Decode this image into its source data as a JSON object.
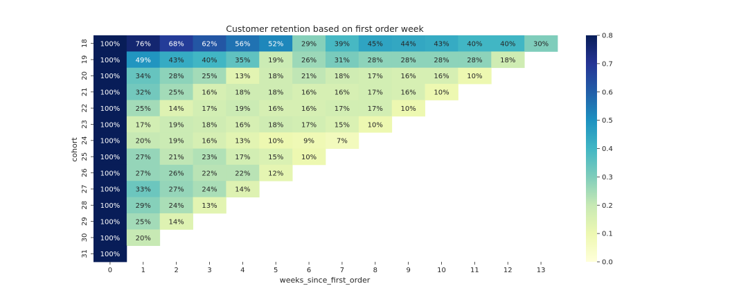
{
  "chart_data": {
    "type": "heatmap",
    "title": "Customer retention based on first order week",
    "xlabel": "weeks_since_first_order",
    "ylabel": "cohort",
    "x_categories": [
      "0",
      "1",
      "2",
      "3",
      "4",
      "5",
      "6",
      "7",
      "8",
      "9",
      "10",
      "11",
      "12",
      "13"
    ],
    "y_categories": [
      "18",
      "19",
      "20",
      "21",
      "22",
      "23",
      "24",
      "25",
      "26",
      "27",
      "28",
      "29",
      "30",
      "31"
    ],
    "values": [
      [
        1.0,
        0.76,
        0.68,
        0.62,
        0.56,
        0.52,
        0.29,
        0.39,
        0.45,
        0.44,
        0.43,
        0.4,
        0.4,
        0.3
      ],
      [
        1.0,
        0.49,
        0.43,
        0.4,
        0.35,
        0.19,
        0.26,
        0.31,
        0.28,
        0.28,
        0.28,
        0.28,
        0.18
      ],
      [
        1.0,
        0.34,
        0.28,
        0.25,
        0.13,
        0.18,
        0.21,
        0.18,
        0.17,
        0.16,
        0.16,
        0.1
      ],
      [
        1.0,
        0.32,
        0.25,
        0.16,
        0.18,
        0.18,
        0.16,
        0.16,
        0.17,
        0.16,
        0.1
      ],
      [
        1.0,
        0.25,
        0.14,
        0.17,
        0.19,
        0.16,
        0.16,
        0.17,
        0.17,
        0.1
      ],
      [
        1.0,
        0.17,
        0.19,
        0.18,
        0.16,
        0.18,
        0.17,
        0.15,
        0.1
      ],
      [
        1.0,
        0.2,
        0.19,
        0.16,
        0.13,
        0.1,
        0.09,
        0.07
      ],
      [
        1.0,
        0.27,
        0.21,
        0.23,
        0.17,
        0.15,
        0.1
      ],
      [
        1.0,
        0.27,
        0.26,
        0.22,
        0.22,
        0.12
      ],
      [
        1.0,
        0.33,
        0.27,
        0.24,
        0.14
      ],
      [
        1.0,
        0.29,
        0.24,
        0.13
      ],
      [
        1.0,
        0.25,
        0.14
      ],
      [
        1.0,
        0.2
      ],
      [
        1.0
      ]
    ],
    "labels": [
      [
        "100%",
        "76%",
        "68%",
        "62%",
        "56%",
        "52%",
        "29%",
        "39%",
        "45%",
        "44%",
        "43%",
        "40%",
        "40%",
        "30%"
      ],
      [
        "100%",
        "49%",
        "43%",
        "40%",
        "35%",
        "19%",
        "26%",
        "31%",
        "28%",
        "28%",
        "28%",
        "28%",
        "18%"
      ],
      [
        "100%",
        "34%",
        "28%",
        "25%",
        "13%",
        "18%",
        "21%",
        "18%",
        "17%",
        "16%",
        "16%",
        "10%"
      ],
      [
        "100%",
        "32%",
        "25%",
        "16%",
        "18%",
        "18%",
        "16%",
        "16%",
        "17%",
        "16%",
        "10%"
      ],
      [
        "100%",
        "25%",
        "14%",
        "17%",
        "19%",
        "16%",
        "16%",
        "17%",
        "17%",
        "10%"
      ],
      [
        "100%",
        "17%",
        "19%",
        "18%",
        "16%",
        "18%",
        "17%",
        "15%",
        "10%"
      ],
      [
        "100%",
        "20%",
        "19%",
        "16%",
        "13%",
        "10%",
        "9%",
        "7%"
      ],
      [
        "100%",
        "27%",
        "21%",
        "23%",
        "17%",
        "15%",
        "10%"
      ],
      [
        "100%",
        "27%",
        "26%",
        "22%",
        "22%",
        "12%"
      ],
      [
        "100%",
        "33%",
        "27%",
        "24%",
        "14%"
      ],
      [
        "100%",
        "29%",
        "24%",
        "13%"
      ],
      [
        "100%",
        "25%",
        "14%"
      ],
      [
        "100%",
        "20%"
      ],
      [
        "100%"
      ]
    ],
    "colorbar": {
      "min": 0.0,
      "max": 0.8,
      "ticks": [
        "0.0",
        "0.1",
        "0.2",
        "0.3",
        "0.4",
        "0.5",
        "0.6",
        "0.7",
        "0.8"
      ],
      "colormap": "YlGnBu",
      "colors": [
        "#ffffd9",
        "#edf8b1",
        "#c7e9b4",
        "#7fcdbb",
        "#41b6c4",
        "#1d91c0",
        "#225ea8",
        "#253494",
        "#081d58"
      ]
    }
  }
}
